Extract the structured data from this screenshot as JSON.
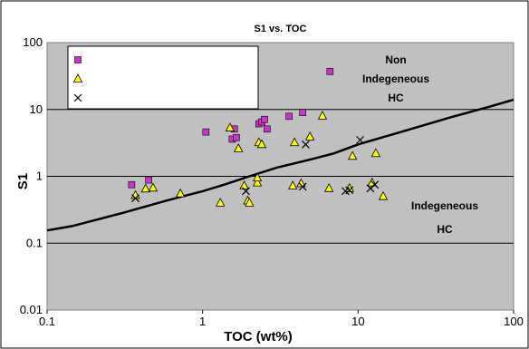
{
  "chart_data": {
    "type": "scatter",
    "title": "S1 vs. TOC",
    "xlabel": "TOC (wt%)",
    "ylabel": "S1",
    "xscale": "log",
    "yscale": "log",
    "xlim": [
      0.1,
      100
    ],
    "ylim": [
      0.01,
      100
    ],
    "x_ticks": [
      "0.1",
      "1",
      "10",
      "100"
    ],
    "y_ticks": [
      "0.01",
      "0.1",
      "1",
      "10",
      "100"
    ],
    "grid": "horizontal major",
    "plot_background": "#c0c0c0",
    "legend": {
      "placement": "top-left",
      "labels": [
        "",
        "",
        ""
      ]
    },
    "annotations": [
      {
        "lines": [
          "Non",
          "Indegeneous",
          "HC"
        ]
      },
      {
        "lines": [
          "Indegeneous",
          "HC"
        ]
      }
    ],
    "series": [
      {
        "marker": "square",
        "color": "#cc33cc",
        "points": [
          [
            0.35,
            0.75
          ],
          [
            0.45,
            0.88
          ],
          [
            1.05,
            4.6
          ],
          [
            1.6,
            5.1
          ],
          [
            1.55,
            3.6
          ],
          [
            1.65,
            3.8
          ],
          [
            2.3,
            6.1
          ],
          [
            2.4,
            6.5
          ],
          [
            2.5,
            7.1
          ],
          [
            2.6,
            5.1
          ],
          [
            3.6,
            7.9
          ],
          [
            4.4,
            9.0
          ],
          [
            6.6,
            37.0
          ]
        ]
      },
      {
        "marker": "triangle",
        "color": "#ffff00",
        "points": [
          [
            0.37,
            0.52
          ],
          [
            0.43,
            0.65
          ],
          [
            0.48,
            0.67
          ],
          [
            0.72,
            0.55
          ],
          [
            1.3,
            0.4
          ],
          [
            1.5,
            5.3
          ],
          [
            1.7,
            2.6
          ],
          [
            1.85,
            0.72
          ],
          [
            1.95,
            0.43
          ],
          [
            2.0,
            0.4
          ],
          [
            2.25,
            0.8
          ],
          [
            2.3,
            3.2
          ],
          [
            2.4,
            3.0
          ],
          [
            2.25,
            0.95
          ],
          [
            3.8,
            0.72
          ],
          [
            3.9,
            3.2
          ],
          [
            4.3,
            0.78
          ],
          [
            4.9,
            3.9
          ],
          [
            5.9,
            8.0
          ],
          [
            6.5,
            0.66
          ],
          [
            8.8,
            0.66
          ],
          [
            9.2,
            2.0
          ],
          [
            12.3,
            0.8
          ],
          [
            13.0,
            2.2
          ],
          [
            14.5,
            0.5
          ]
        ]
      },
      {
        "marker": "x",
        "color": "#000000",
        "points": [
          [
            0.37,
            0.47
          ],
          [
            1.9,
            0.6
          ],
          [
            4.4,
            0.7
          ],
          [
            4.6,
            3.0
          ],
          [
            8.3,
            0.6
          ],
          [
            8.8,
            0.62
          ],
          [
            10.3,
            3.5
          ],
          [
            12.0,
            0.66
          ],
          [
            12.8,
            0.75
          ]
        ]
      }
    ],
    "boundary_line": {
      "points": [
        [
          0.1,
          0.155
        ],
        [
          0.145,
          0.18
        ],
        [
          0.3,
          0.28
        ],
        [
          0.6,
          0.44
        ],
        [
          1.0,
          0.6
        ],
        [
          1.4,
          0.76
        ],
        [
          2.0,
          1.0
        ],
        [
          3.0,
          1.35
        ],
        [
          5.0,
          1.8
        ],
        [
          7.0,
          2.2
        ],
        [
          10.0,
          3.0
        ],
        [
          20.0,
          4.8
        ],
        [
          40.0,
          7.7
        ],
        [
          70.0,
          11.0
        ],
        [
          100.0,
          14.0
        ]
      ]
    }
  }
}
